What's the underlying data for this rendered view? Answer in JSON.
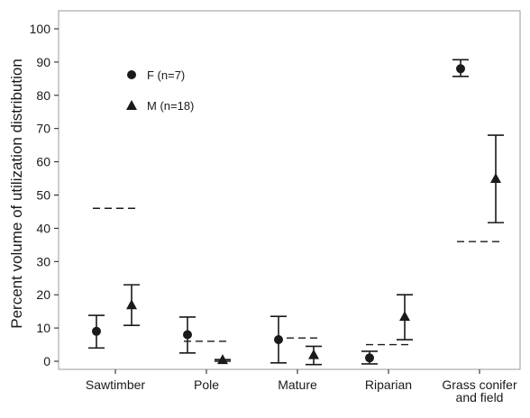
{
  "chart_data": {
    "type": "scatter",
    "title": "",
    "xlabel": "",
    "ylabel": "Percent volume of utilization distribution",
    "ylim": [
      0,
      100
    ],
    "yticks": [
      0,
      10,
      20,
      30,
      40,
      50,
      60,
      70,
      80,
      90,
      100
    ],
    "grid": false,
    "legend_position": "top-left",
    "categories": [
      {
        "lines": [
          "Sawtimber"
        ]
      },
      {
        "lines": [
          "Pole"
        ]
      },
      {
        "lines": [
          "Mature"
        ]
      },
      {
        "lines": [
          "Riparian"
        ]
      },
      {
        "lines": [
          "Grass conifer",
          "and field"
        ]
      }
    ],
    "series": [
      {
        "name": "F (n=7)",
        "marker": "circle",
        "values": [
          9,
          8,
          6.5,
          1,
          88
        ],
        "error_low": [
          4,
          2.5,
          -0.5,
          -0.8,
          85.7
        ],
        "error_high": [
          13.8,
          13.3,
          13.5,
          3,
          90.7
        ]
      },
      {
        "name": "M (n=18)",
        "marker": "triangle",
        "values": [
          17,
          0.5,
          2,
          13.5,
          55
        ],
        "error_low": [
          10.8,
          0,
          -1,
          6.5,
          41.7
        ],
        "error_high": [
          23,
          0.5,
          4.5,
          20,
          68
        ]
      }
    ],
    "reference_lines": {
      "style": "dashed",
      "values": [
        46,
        6,
        7,
        5,
        36
      ]
    }
  }
}
